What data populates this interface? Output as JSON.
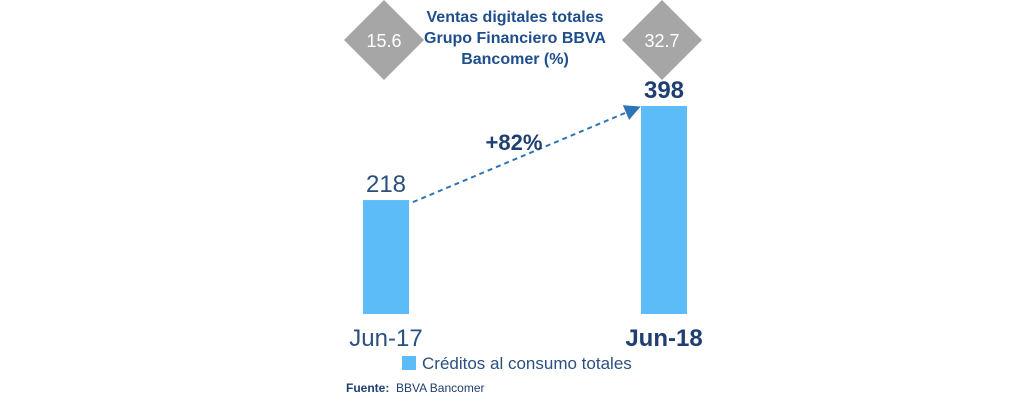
{
  "chart_data": {
    "type": "bar",
    "title_lines": [
      "Ventas digitales totales",
      "Grupo Financiero BBVA",
      "Bancomer (%)"
    ],
    "categories": [
      "Jun-17",
      "Jun-18"
    ],
    "series": [
      {
        "name": "Créditos al consumo totales",
        "values": [
          218,
          398
        ]
      }
    ],
    "badges": [
      "15.6",
      "32.7"
    ],
    "value_labels": [
      "218",
      "398"
    ],
    "growth_label": "+82%",
    "ylim": [
      0,
      398
    ],
    "colors": {
      "bar": "#5bbcf8",
      "badge": "#a6a6a6",
      "text": "#1f4e8c",
      "arrow": "#2e75b6"
    }
  },
  "legend": {
    "label": "Créditos al consumo totales"
  },
  "source": {
    "key": "Fuente:",
    "value": "BBVA Bancomer"
  }
}
